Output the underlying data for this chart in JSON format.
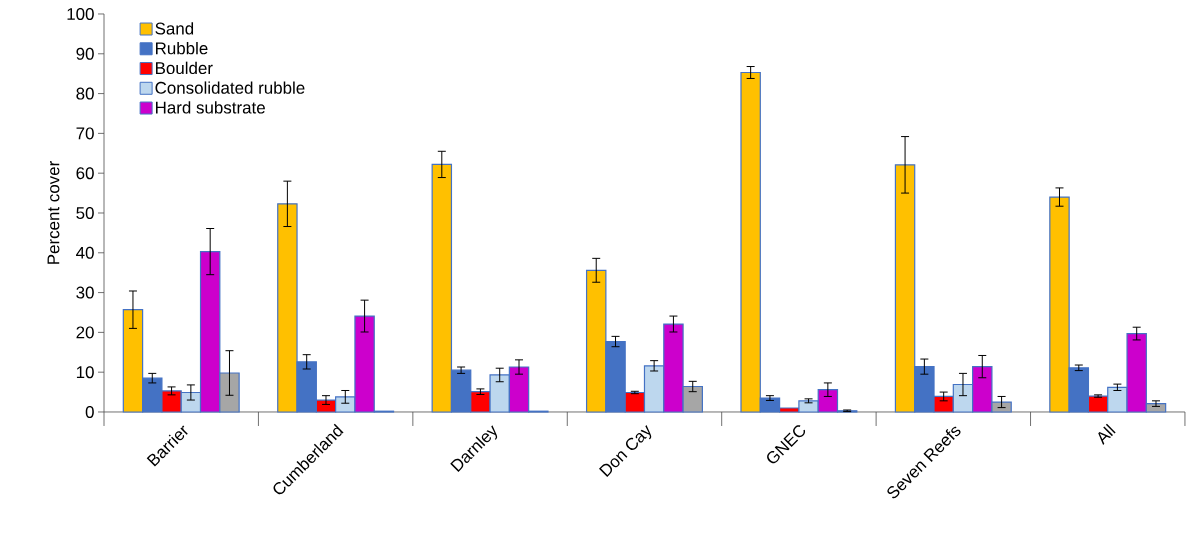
{
  "chart_data": {
    "type": "bar",
    "ylabel": "Percent cover",
    "categories": [
      "Barrier",
      "Cumberland",
      "Darnley",
      "Don Cay",
      "GNEC",
      "Seven Reefs",
      "All"
    ],
    "series": [
      {
        "name": "Sand",
        "color": "#ffc000",
        "values": [
          25.7,
          52.3,
          62.2,
          35.6,
          85.3,
          62.1,
          54.0
        ],
        "errors": [
          4.7,
          5.7,
          3.3,
          3.0,
          1.5,
          7.1,
          2.3
        ]
      },
      {
        "name": "Rubble",
        "color": "#4472c4",
        "values": [
          8.5,
          12.6,
          10.5,
          17.7,
          3.5,
          11.4,
          11.1
        ],
        "errors": [
          1.2,
          1.8,
          0.8,
          1.3,
          0.6,
          1.9,
          0.7
        ]
      },
      {
        "name": "Boulder",
        "color": "#ff0000",
        "values": [
          5.3,
          3.0,
          5.1,
          4.9,
          1.0,
          3.9,
          4.0
        ],
        "errors": [
          1.0,
          1.1,
          0.7,
          0.3,
          null,
          1.1,
          0.3
        ]
      },
      {
        "name": "Consolidated rubble",
        "color": "#bdd7ee",
        "values": [
          4.9,
          3.8,
          9.3,
          11.6,
          2.8,
          6.9,
          6.2
        ],
        "errors": [
          1.9,
          1.6,
          1.7,
          1.3,
          0.5,
          2.8,
          0.8
        ]
      },
      {
        "name": "Hard substrate",
        "color": "#cc00cc",
        "values": [
          40.3,
          24.1,
          11.3,
          22.1,
          5.6,
          11.4,
          19.7
        ],
        "errors": [
          5.8,
          4.0,
          1.8,
          2.0,
          1.7,
          2.8,
          1.6
        ]
      },
      {
        "color": "#a6a6a6",
        "values": [
          9.8,
          0.2,
          0.2,
          6.4,
          0.3,
          2.5,
          2.1
        ],
        "errors": [
          5.6,
          null,
          null,
          1.3,
          0.2,
          1.4,
          0.7
        ]
      }
    ],
    "ylim": [
      0,
      100
    ],
    "yticks": [
      0,
      10,
      20,
      30,
      40,
      50,
      60,
      70,
      80,
      90,
      100
    ],
    "grid": false,
    "legend": "top left"
  }
}
